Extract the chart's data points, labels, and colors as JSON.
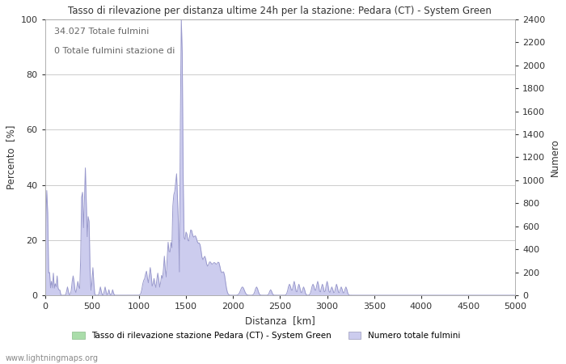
{
  "title": "Tasso di rilevazione per distanza ultime 24h per la stazione: Pedara (CT) - System Green",
  "xlabel": "Distanza  [km]",
  "ylabel_left": "Percento  [%]",
  "ylabel_right": "Numero",
  "annotation_line1": "34.027 Totale fulmini",
  "annotation_line2": "0 Totale fulmini stazione di",
  "legend_label1": "Tasso di rilevazione stazione Pedara (CT) - System Green",
  "legend_label2": "Numero totale fulmini",
  "watermark": "www.lightningmaps.org",
  "xlim": [
    0,
    5000
  ],
  "ylim_left": [
    0,
    100
  ],
  "ylim_right": [
    0,
    2400
  ],
  "xticks": [
    0,
    500,
    1000,
    1500,
    2000,
    2500,
    3000,
    3500,
    4000,
    4500,
    5000
  ],
  "yticks_left": [
    0,
    20,
    40,
    60,
    80,
    100
  ],
  "yticks_right": [
    0,
    200,
    400,
    600,
    800,
    1000,
    1200,
    1400,
    1600,
    1800,
    2000,
    2200,
    2400
  ],
  "line_color": "#9999cc",
  "fill_color_detection": "#ccccee",
  "fill_color_legend_green": "#aaddaa",
  "fill_color_legend_blue": "#ccccee",
  "bg_color": "#ffffff",
  "grid_color": "#999999",
  "title_color": "#333333",
  "label_color": "#333333",
  "tick_color": "#333333",
  "figsize": [
    7.0,
    4.5
  ],
  "dpi": 100
}
